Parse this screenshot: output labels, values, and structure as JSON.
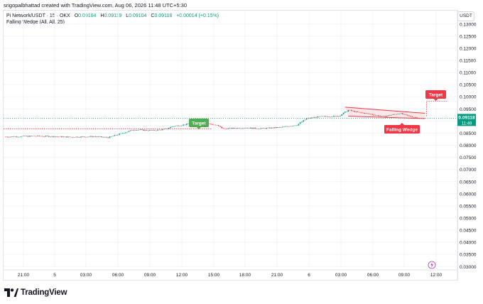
{
  "header": {
    "creator_line": "srigopalbhattad created with TradingView.com, Aug 06, 2026 11:48 UTC+5:30"
  },
  "legend": {
    "symbol": "Pi Network/USDT · 15 · OKX",
    "o_label": "O",
    "o_value": "0.09104",
    "h_label": "H",
    "h_value": "0.09119",
    "l_label": "L",
    "l_value": "0.09104",
    "c_label": "C",
    "c_value": "0.09118",
    "change": "+0.00014 (+0.15%)",
    "indicator": "Falling Wedge (All, All, 25)"
  },
  "currency": "USDT",
  "price_label": {
    "value": "0.09118",
    "time": "11:49"
  },
  "annotations": {
    "target_left": "Target",
    "target_right": "Target",
    "pattern": "Falling Wedge"
  },
  "footer": {
    "brand": "TradingView"
  },
  "colors": {
    "up": "#089981",
    "down": "#f23645",
    "red_label": "#f23645",
    "green_label": "#4caf50",
    "grid": "#f0f3fa",
    "axis_text": "#131722"
  },
  "chart_data": {
    "type": "candlestick",
    "y_scale": "linear",
    "ylim": [
      0.0295,
      0.1355
    ],
    "y_ticks": [
      "0.13000",
      "0.12500",
      "0.12000",
      "0.11500",
      "0.11000",
      "0.10500",
      "0.10000",
      "0.09500",
      "0.09000",
      "0.08500",
      "0.08000",
      "0.07500",
      "0.07000",
      "0.06500",
      "0.06000",
      "0.05500",
      "0.05000",
      "0.04500",
      "0.04000",
      "0.03500",
      "0.03000"
    ],
    "x_ticks": [
      "21:00",
      "5",
      "03:00",
      "06:00",
      "09:00",
      "12:00",
      "15:00",
      "18:00",
      "21:00",
      "6",
      "03:00",
      "06:00",
      "09:00",
      "12:00"
    ],
    "last_price": 0.09118,
    "price_path": [
      [
        0,
        0.0835
      ],
      [
        20,
        0.0838
      ],
      [
        40,
        0.0834
      ],
      [
        56,
        0.0836
      ],
      [
        64,
        0.0832
      ],
      [
        72,
        0.0848
      ],
      [
        80,
        0.0864
      ],
      [
        92,
        0.0861
      ],
      [
        100,
        0.0866
      ],
      [
        104,
        0.0878
      ],
      [
        112,
        0.0885
      ],
      [
        120,
        0.0895
      ],
      [
        128,
        0.0887
      ],
      [
        132,
        0.0882
      ],
      [
        136,
        0.0868
      ],
      [
        148,
        0.0872
      ],
      [
        160,
        0.0869
      ],
      [
        172,
        0.0874
      ],
      [
        182,
        0.0884
      ],
      [
        188,
        0.091
      ],
      [
        196,
        0.0918
      ],
      [
        208,
        0.092
      ],
      [
        214,
        0.0945
      ],
      [
        220,
        0.0936
      ],
      [
        228,
        0.0928
      ],
      [
        236,
        0.0918
      ],
      [
        240,
        0.0924
      ],
      [
        246,
        0.0932
      ],
      [
        252,
        0.092
      ],
      [
        258,
        0.0912
      ]
    ],
    "horizontal_lines": [
      {
        "price": 0.0868,
        "style": "dotted",
        "color": "#f23645"
      }
    ],
    "wedge": {
      "upper": [
        [
          212,
          0.0957
        ],
        [
          262,
          0.0932
        ]
      ],
      "lower": [
        [
          214,
          0.092
        ],
        [
          262,
          0.091
        ]
      ]
    },
    "target_projection": {
      "from": [
        262,
        0.092
      ],
      "to": [
        268,
        0.0982
      ]
    }
  }
}
